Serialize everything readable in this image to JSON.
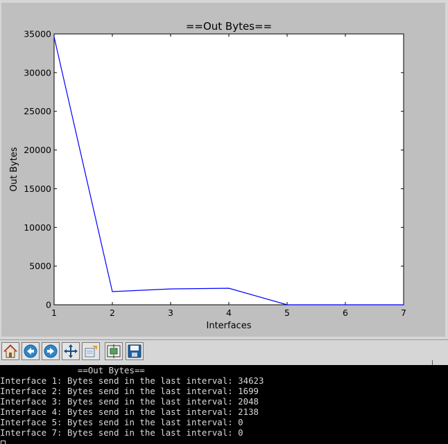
{
  "chart_data": {
    "type": "line",
    "title": "==Out Bytes==",
    "xlabel": "Interfaces",
    "ylabel": "Out Bytes",
    "x": [
      1,
      2,
      3,
      4,
      5,
      6,
      7
    ],
    "y": [
      34623,
      1699,
      2048,
      2138,
      0,
      0,
      0
    ],
    "xlim": [
      1,
      7
    ],
    "ylim": [
      0,
      35000
    ],
    "xticks": [
      "1",
      "2",
      "3",
      "4",
      "5",
      "6",
      "7"
    ],
    "yticks": [
      "0",
      "5000",
      "10000",
      "15000",
      "20000",
      "25000",
      "30000",
      "35000"
    ],
    "line_color": "#0000ff",
    "grid": false
  },
  "toolbar": {
    "buttons": [
      {
        "name": "home-button",
        "icon": "home-icon"
      },
      {
        "name": "back-button",
        "icon": "back-arrow-icon"
      },
      {
        "name": "forward-button",
        "icon": "forward-arrow-icon"
      },
      {
        "name": "pan-button",
        "icon": "move-icon"
      },
      {
        "name": "zoom-button",
        "icon": "zoom-rect-icon"
      },
      {
        "name": "subplots-button",
        "icon": "subplots-icon"
      },
      {
        "name": "save-button",
        "icon": "save-icon"
      }
    ]
  },
  "terminal": {
    "header": "               ==Out Bytes==",
    "lines": [
      "Interface 1: Bytes send in the last interval: 34623",
      "Interface 2: Bytes send in the last interval: 1699",
      "Interface 3: Bytes send in the last interval: 2048",
      "Interface 4: Bytes send in the last interval: 2138",
      "Interface 5: Bytes send in the last interval: 0",
      "Interface 7: Bytes send in the last interval: 0"
    ]
  }
}
